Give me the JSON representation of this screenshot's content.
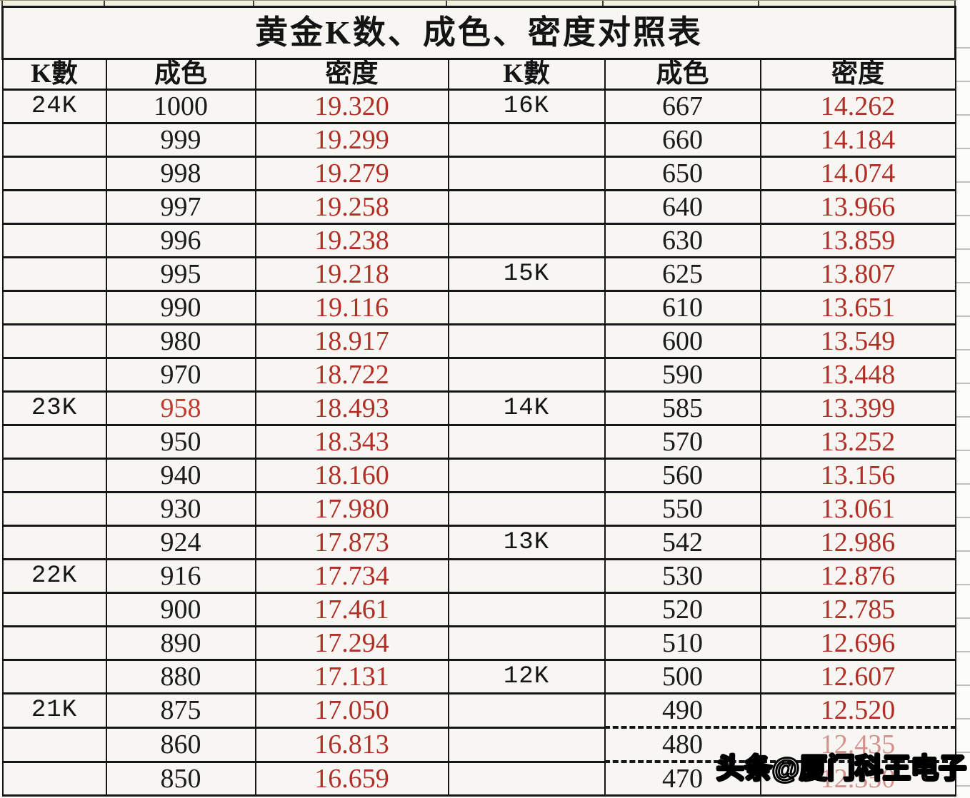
{
  "title": "黄金K数、成色、密度对照表",
  "columns": [
    "K數",
    "成色",
    "密度",
    "K數",
    "成色",
    "密度"
  ],
  "colors": {
    "cell_background": "#f8f6f3",
    "border": "#161616",
    "density_header": "#7c1512",
    "density_value": "#b03028",
    "purity_red_value": "#c23b2e",
    "top_strip_background": "#f2f1e0"
  },
  "watermark": {
    "text": "头条@厦门科王电子"
  },
  "rows": [
    {
      "k1": "24K",
      "p1": "1000",
      "d1": "19.320",
      "k2": "16K",
      "p2": "667",
      "d2": "14.262"
    },
    {
      "k1": "",
      "p1": "999",
      "d1": "19.299",
      "k2": "",
      "p2": "660",
      "d2": "14.184"
    },
    {
      "k1": "",
      "p1": "998",
      "d1": "19.279",
      "k2": "",
      "p2": "650",
      "d2": "14.074"
    },
    {
      "k1": "",
      "p1": "997",
      "d1": "19.258",
      "k2": "",
      "p2": "640",
      "d2": "13.966"
    },
    {
      "k1": "",
      "p1": "996",
      "d1": "19.238",
      "k2": "",
      "p2": "630",
      "d2": "13.859"
    },
    {
      "k1": "",
      "p1": "995",
      "d1": "19.218",
      "k2": "15K",
      "p2": "625",
      "d2": "13.807"
    },
    {
      "k1": "",
      "p1": "990",
      "d1": "19.116",
      "k2": "",
      "p2": "610",
      "d2": "13.651"
    },
    {
      "k1": "",
      "p1": "980",
      "d1": "18.917",
      "k2": "",
      "p2": "600",
      "d2": "13.549"
    },
    {
      "k1": "",
      "p1": "970",
      "d1": "18.722",
      "k2": "",
      "p2": "590",
      "d2": "13.448"
    },
    {
      "k1": "23K",
      "p1": "958",
      "d1": "18.493",
      "k2": "14K",
      "p2": "585",
      "d2": "13.399",
      "p1_red": true
    },
    {
      "k1": "",
      "p1": "950",
      "d1": "18.343",
      "k2": "",
      "p2": "570",
      "d2": "13.252"
    },
    {
      "k1": "",
      "p1": "940",
      "d1": "18.160",
      "k2": "",
      "p2": "560",
      "d2": "13.156"
    },
    {
      "k1": "",
      "p1": "930",
      "d1": "17.980",
      "k2": "",
      "p2": "550",
      "d2": "13.061"
    },
    {
      "k1": "",
      "p1": "924",
      "d1": "17.873",
      "k2": "13K",
      "p2": "542",
      "d2": "12.986"
    },
    {
      "k1": "22K",
      "p1": "916",
      "d1": "17.734",
      "k2": "",
      "p2": "530",
      "d2": "12.876"
    },
    {
      "k1": "",
      "p1": "900",
      "d1": "17.461",
      "k2": "",
      "p2": "520",
      "d2": "12.785"
    },
    {
      "k1": "",
      "p1": "890",
      "d1": "17.294",
      "k2": "",
      "p2": "510",
      "d2": "12.696"
    },
    {
      "k1": "",
      "p1": "880",
      "d1": "17.131",
      "k2": "12K",
      "p2": "500",
      "d2": "12.607"
    },
    {
      "k1": "21K",
      "p1": "875",
      "d1": "17.050",
      "k2": "",
      "p2": "490",
      "d2": "12.520"
    },
    {
      "k1": "",
      "p1": "860",
      "d1": "16.813",
      "k2": "",
      "p2": "480",
      "d2": "12.435",
      "d2_faded": true,
      "dashed_top": true
    },
    {
      "k1": "",
      "p1": "850",
      "d1": "16.659",
      "k2": "",
      "p2": "470",
      "d2": "12.350",
      "d2_faded": true,
      "dashed_top": true
    }
  ]
}
